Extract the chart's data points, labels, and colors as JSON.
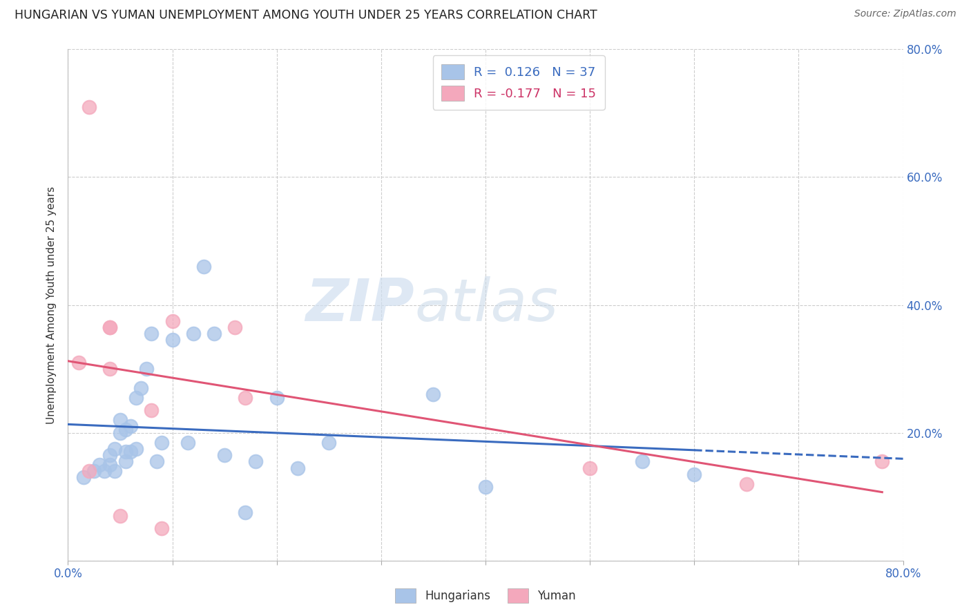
{
  "title": "HUNGARIAN VS YUMAN UNEMPLOYMENT AMONG YOUTH UNDER 25 YEARS CORRELATION CHART",
  "source": "Source: ZipAtlas.com",
  "ylabel": "Unemployment Among Youth under 25 years",
  "xlim": [
    0.0,
    0.8
  ],
  "ylim": [
    0.0,
    0.8
  ],
  "hungarian_R": 0.126,
  "hungarian_N": 37,
  "yuman_R": -0.177,
  "yuman_N": 15,
  "hungarian_color": "#a8c4e8",
  "yuman_color": "#f4a8bc",
  "trend_hungarian_color": "#3a6bbf",
  "trend_yuman_color": "#e05575",
  "background_color": "#ffffff",
  "watermark_zip": "ZIP",
  "watermark_atlas": "atlas",
  "grid_color": "#cccccc",
  "tick_label_color": "#3a6bbf",
  "hungarian_x": [
    0.015,
    0.025,
    0.03,
    0.035,
    0.04,
    0.04,
    0.045,
    0.045,
    0.05,
    0.05,
    0.055,
    0.055,
    0.055,
    0.06,
    0.06,
    0.065,
    0.065,
    0.07,
    0.075,
    0.08,
    0.085,
    0.09,
    0.1,
    0.115,
    0.12,
    0.13,
    0.14,
    0.15,
    0.17,
    0.18,
    0.2,
    0.22,
    0.25,
    0.35,
    0.4,
    0.55,
    0.6
  ],
  "hungarian_y": [
    0.13,
    0.14,
    0.15,
    0.14,
    0.15,
    0.165,
    0.14,
    0.175,
    0.2,
    0.22,
    0.155,
    0.17,
    0.205,
    0.21,
    0.17,
    0.175,
    0.255,
    0.27,
    0.3,
    0.355,
    0.155,
    0.185,
    0.345,
    0.185,
    0.355,
    0.46,
    0.355,
    0.165,
    0.075,
    0.155,
    0.255,
    0.145,
    0.185,
    0.26,
    0.115,
    0.155,
    0.135
  ],
  "yuman_x": [
    0.01,
    0.02,
    0.02,
    0.04,
    0.04,
    0.04,
    0.05,
    0.08,
    0.09,
    0.1,
    0.16,
    0.17,
    0.5,
    0.65,
    0.78
  ],
  "yuman_y": [
    0.31,
    0.14,
    0.71,
    0.365,
    0.365,
    0.3,
    0.07,
    0.235,
    0.05,
    0.375,
    0.365,
    0.255,
    0.145,
    0.12,
    0.155
  ]
}
